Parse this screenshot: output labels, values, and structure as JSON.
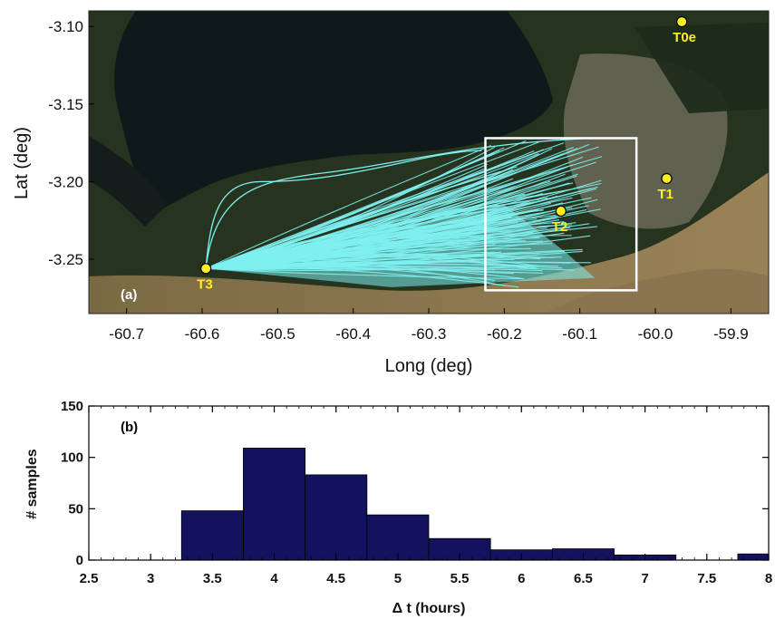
{
  "chart_data": [
    {
      "type": "scatter",
      "panel_label": "(a)",
      "xlabel": "Long (deg)",
      "ylabel": "Lat (deg)",
      "xlim": [
        -60.75,
        -59.85
      ],
      "ylim": [
        -3.285,
        -3.09
      ],
      "x_ticks": [
        "-60.7",
        "-60.6",
        "-60.5",
        "-60.4",
        "-60.3",
        "-60.2",
        "-60.1",
        "-60.0",
        "-59.9"
      ],
      "y_ticks": [
        "-3.10",
        "-3.15",
        "-3.20",
        "-3.25"
      ],
      "sites": [
        {
          "label": "T0e",
          "x": -59.965,
          "y": -3.097
        },
        {
          "label": "T1",
          "x": -59.985,
          "y": -3.198
        },
        {
          "label": "T2",
          "x": -60.125,
          "y": -3.219
        },
        {
          "label": "T3",
          "x": -60.595,
          "y": -3.256
        }
      ],
      "box": {
        "x_min": -60.225,
        "x_max": -60.025,
        "y_min": -3.27,
        "y_max": -3.172
      },
      "trajectory_origin": {
        "x": -60.595,
        "y": -3.256
      },
      "trajectory_endpoint_ranges": {
        "x": [
          -60.225,
          -60.07
        ],
        "y": [
          -3.268,
          -3.172
        ]
      },
      "colors": {
        "trajectory": "#7ff0f0",
        "site_marker": "#ffee22",
        "box": "#ffffff"
      },
      "background": "satellite imagery"
    },
    {
      "type": "bar",
      "panel_label": "(b)",
      "xlabel": "Δ t (hours)",
      "ylabel": "# samples",
      "xlim": [
        2.5,
        8
      ],
      "ylim": [
        0,
        150
      ],
      "x_ticks": [
        "2.5",
        "3",
        "3.5",
        "4",
        "4.5",
        "5",
        "5.5",
        "6",
        "6.5",
        "7",
        "7.5",
        "8"
      ],
      "y_ticks": [
        "0",
        "50",
        "100",
        "150"
      ],
      "bin_edges": [
        3.25,
        3.75,
        4.25,
        4.75,
        5.25,
        5.75,
        6.25,
        6.75,
        7.25,
        7.75,
        8.0
      ],
      "values": [
        48,
        109,
        83,
        44,
        21,
        10,
        11,
        5,
        0,
        6
      ],
      "colors": {
        "bar": "#14125e",
        "edge": "#000000"
      }
    }
  ]
}
